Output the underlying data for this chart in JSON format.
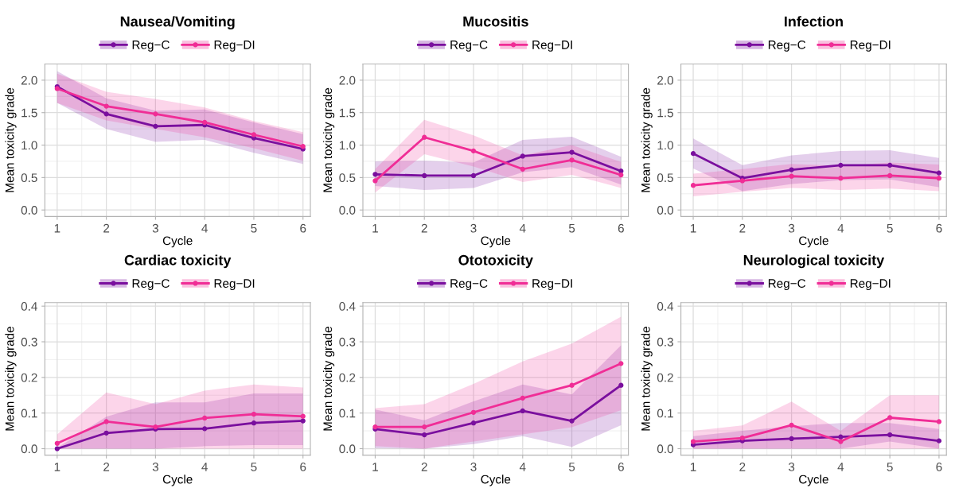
{
  "chart_data": [
    {
      "type": "line",
      "title": "Nausea/Vomiting",
      "xlabel": "Cycle",
      "ylabel": "Mean toxicity grade",
      "x": [
        1,
        2,
        3,
        4,
        5,
        6
      ],
      "xlim": [
        0.75,
        6.15
      ],
      "xticks": [
        1,
        2,
        3,
        4,
        5,
        6
      ],
      "ylim": [
        -0.1,
        2.25
      ],
      "yticks": [
        {
          "value": 0,
          "label": "0.0"
        },
        0.5,
        {
          "value": 1,
          "label": "1.0"
        },
        1.5,
        {
          "value": 2,
          "label": "2.0"
        }
      ],
      "grid": true,
      "legend": "top",
      "marker": "circle",
      "line_style": "solid",
      "series": [
        {
          "name": "Reg−C",
          "color": "#7a0f9e",
          "values": [
            1.9,
            1.48,
            1.29,
            1.31,
            1.11,
            0.94
          ],
          "lower": [
            1.65,
            1.25,
            1.05,
            1.08,
            0.88,
            0.71
          ],
          "upper": [
            2.14,
            1.72,
            1.53,
            1.55,
            1.35,
            1.17
          ]
        },
        {
          "name": "Reg−DI",
          "color": "#f02d96",
          "values": [
            1.87,
            1.6,
            1.48,
            1.35,
            1.16,
            0.98
          ],
          "lower": [
            1.65,
            1.38,
            1.25,
            1.12,
            0.95,
            0.76
          ],
          "upper": [
            2.1,
            1.82,
            1.71,
            1.58,
            1.37,
            1.2
          ]
        }
      ]
    },
    {
      "type": "line",
      "title": "Mucositis",
      "xlabel": "Cycle",
      "ylabel": "Mean toxicity grade",
      "x": [
        1,
        2,
        3,
        4,
        5,
        6
      ],
      "xlim": [
        0.75,
        6.15
      ],
      "xticks": [
        1,
        2,
        3,
        4,
        5,
        6
      ],
      "ylim": [
        -0.1,
        2.25
      ],
      "yticks": [
        {
          "value": 0,
          "label": "0.0"
        },
        0.5,
        {
          "value": 1,
          "label": "1.0"
        },
        1.5,
        {
          "value": 2,
          "label": "2.0"
        }
      ],
      "grid": true,
      "legend": "top",
      "marker": "circle",
      "line_style": "solid",
      "series": [
        {
          "name": "Reg−C",
          "color": "#7a0f9e",
          "values": [
            0.55,
            0.53,
            0.53,
            0.83,
            0.89,
            0.6
          ],
          "lower": [
            0.37,
            0.31,
            0.34,
            0.58,
            0.66,
            0.39
          ],
          "upper": [
            0.75,
            0.76,
            0.73,
            1.08,
            1.13,
            0.82
          ]
        },
        {
          "name": "Reg−DI",
          "color": "#f02d96",
          "values": [
            0.45,
            1.12,
            0.91,
            0.63,
            0.77,
            0.54
          ],
          "lower": [
            0.27,
            0.86,
            0.67,
            0.43,
            0.54,
            0.34
          ],
          "upper": [
            0.63,
            1.39,
            1.15,
            0.84,
            1.0,
            0.74
          ]
        }
      ]
    },
    {
      "type": "line",
      "title": "Infection",
      "xlabel": "Cycle",
      "ylabel": "Mean toxicity grade",
      "x": [
        1,
        2,
        3,
        4,
        5,
        6
      ],
      "xlim": [
        0.75,
        6.15
      ],
      "xticks": [
        1,
        2,
        3,
        4,
        5,
        6
      ],
      "ylim": [
        -0.1,
        2.25
      ],
      "yticks": [
        {
          "value": 0,
          "label": "0.0"
        },
        0.5,
        {
          "value": 1,
          "label": "1.0"
        },
        1.5,
        {
          "value": 2,
          "label": "2.0"
        }
      ],
      "grid": true,
      "legend": "top",
      "marker": "circle",
      "line_style": "solid",
      "series": [
        {
          "name": "Reg−C",
          "color": "#7a0f9e",
          "values": [
            0.87,
            0.49,
            0.62,
            0.69,
            0.69,
            0.57
          ],
          "lower": [
            0.64,
            0.29,
            0.4,
            0.46,
            0.47,
            0.35
          ],
          "upper": [
            1.1,
            0.69,
            0.84,
            0.91,
            0.92,
            0.8
          ]
        },
        {
          "name": "Reg−DI",
          "color": "#f02d96",
          "values": [
            0.38,
            0.45,
            0.52,
            0.49,
            0.53,
            0.49
          ],
          "lower": [
            0.21,
            0.28,
            0.34,
            0.31,
            0.33,
            0.29
          ],
          "upper": [
            0.56,
            0.63,
            0.71,
            0.68,
            0.73,
            0.7
          ]
        }
      ]
    },
    {
      "type": "line",
      "title": "Cardiac toxicity",
      "xlabel": "Cycle",
      "ylabel": "Mean toxicity grade",
      "x": [
        1,
        2,
        3,
        4,
        5,
        6
      ],
      "xlim": [
        0.75,
        6.15
      ],
      "xticks": [
        1,
        2,
        3,
        4,
        5,
        6
      ],
      "ylim": [
        -0.018,
        0.41
      ],
      "yticks": [
        {
          "value": 0,
          "label": "0.0"
        },
        0.1,
        0.2,
        0.3,
        0.4
      ],
      "grid": true,
      "legend": "top",
      "marker": "circle",
      "line_style": "solid",
      "series": [
        {
          "name": "Reg−C",
          "color": "#7a0f9e",
          "values": [
            0.0,
            0.044,
            0.055,
            0.056,
            0.072,
            0.078
          ],
          "lower": [
            0.0,
            0.0,
            0.0,
            0.007,
            0.01,
            0.01
          ],
          "upper": [
            0.002,
            0.09,
            0.13,
            0.13,
            0.155,
            0.155
          ]
        },
        {
          "name": "Reg−DI",
          "color": "#f02d96",
          "values": [
            0.015,
            0.076,
            0.061,
            0.086,
            0.097,
            0.091
          ],
          "lower": [
            0.0,
            0.0,
            0.0,
            0.0,
            0.0,
            0.0
          ],
          "upper": [
            0.04,
            0.158,
            0.125,
            0.163,
            0.18,
            0.172
          ]
        }
      ]
    },
    {
      "type": "line",
      "title": "Ototoxicity",
      "xlabel": "Cycle",
      "ylabel": "Mean toxicity grade",
      "x": [
        1,
        2,
        3,
        4,
        5,
        6
      ],
      "xlim": [
        0.75,
        6.15
      ],
      "xticks": [
        1,
        2,
        3,
        4,
        5,
        6
      ],
      "ylim": [
        -0.018,
        0.41
      ],
      "yticks": [
        {
          "value": 0,
          "label": "0.0"
        },
        0.1,
        0.2,
        0.3,
        0.4
      ],
      "grid": true,
      "legend": "top",
      "marker": "circle",
      "line_style": "solid",
      "series": [
        {
          "name": "Reg−C",
          "color": "#7a0f9e",
          "values": [
            0.055,
            0.039,
            0.072,
            0.106,
            0.078,
            0.178
          ],
          "lower": [
            0.001,
            0.0,
            0.013,
            0.035,
            0.005,
            0.066
          ],
          "upper": [
            0.11,
            0.08,
            0.133,
            0.18,
            0.152,
            0.29
          ]
        },
        {
          "name": "Reg−DI",
          "color": "#f02d96",
          "values": [
            0.061,
            0.061,
            0.102,
            0.142,
            0.178,
            0.239
          ],
          "lower": [
            0.007,
            0.0,
            0.02,
            0.04,
            0.06,
            0.108
          ],
          "upper": [
            0.114,
            0.125,
            0.182,
            0.245,
            0.295,
            0.37
          ]
        }
      ]
    },
    {
      "type": "line",
      "title": "Neurological toxicity",
      "xlabel": "Cycle",
      "ylabel": "Mean toxicity grade",
      "x": [
        1,
        2,
        3,
        4,
        5,
        6
      ],
      "xlim": [
        0.75,
        6.15
      ],
      "xticks": [
        1,
        2,
        3,
        4,
        5,
        6
      ],
      "ylim": [
        -0.018,
        0.41
      ],
      "yticks": [
        {
          "value": 0,
          "label": "0.0"
        },
        0.1,
        0.2,
        0.3,
        0.4
      ],
      "grid": true,
      "legend": "top",
      "marker": "circle",
      "line_style": "solid",
      "series": [
        {
          "name": "Reg−C",
          "color": "#7a0f9e",
          "values": [
            0.011,
            0.022,
            0.028,
            0.033,
            0.039,
            0.022
          ],
          "lower": [
            0.0,
            0.0,
            0.0,
            0.0,
            0.02,
            0.0
          ],
          "upper": [
            0.035,
            0.05,
            0.063,
            0.072,
            0.072,
            0.055
          ]
        },
        {
          "name": "Reg−DI",
          "color": "#f02d96",
          "values": [
            0.02,
            0.03,
            0.066,
            0.02,
            0.087,
            0.076
          ],
          "lower": [
            0.0,
            0.0,
            0.0,
            0.0,
            0.0,
            0.0
          ],
          "upper": [
            0.05,
            0.065,
            0.132,
            0.05,
            0.15,
            0.15
          ]
        }
      ]
    }
  ]
}
